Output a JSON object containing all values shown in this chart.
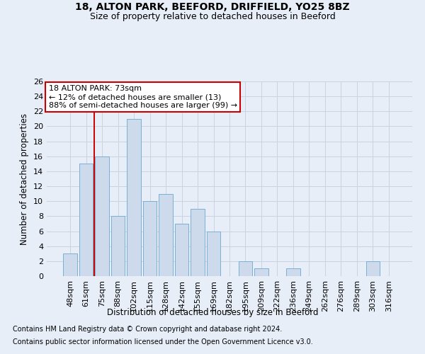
{
  "title1": "18, ALTON PARK, BEEFORD, DRIFFIELD, YO25 8BZ",
  "title2": "Size of property relative to detached houses in Beeford",
  "xlabel": "Distribution of detached houses by size in Beeford",
  "ylabel": "Number of detached properties",
  "footer1": "Contains HM Land Registry data © Crown copyright and database right 2024.",
  "footer2": "Contains public sector information licensed under the Open Government Licence v3.0.",
  "annotation_line1": "18 ALTON PARK: 73sqm",
  "annotation_line2": "← 12% of detached houses are smaller (13)",
  "annotation_line3": "88% of semi-detached houses are larger (99) →",
  "bar_labels": [
    "48sqm",
    "61sqm",
    "75sqm",
    "88sqm",
    "102sqm",
    "115sqm",
    "128sqm",
    "142sqm",
    "155sqm",
    "169sqm",
    "182sqm",
    "195sqm",
    "209sqm",
    "222sqm",
    "236sqm",
    "249sqm",
    "262sqm",
    "276sqm",
    "289sqm",
    "303sqm",
    "316sqm"
  ],
  "bar_values": [
    3,
    15,
    16,
    8,
    21,
    10,
    11,
    7,
    9,
    6,
    0,
    2,
    1,
    0,
    1,
    0,
    0,
    0,
    0,
    2,
    0
  ],
  "bar_color": "#ccdaeb",
  "bar_edge_color": "#7aafd4",
  "vline_x": 1.5,
  "ylim": [
    0,
    26
  ],
  "ytick_max": 26,
  "ytick_step": 2,
  "grid_color": "#c8d4e4",
  "background_color": "#e8eef8",
  "annotation_box_color": "white",
  "annotation_box_edge_color": "#cc0000",
  "vline_color": "#cc0000",
  "title1_fontsize": 10,
  "title2_fontsize": 9,
  "axis_label_fontsize": 8.5,
  "tick_fontsize": 8,
  "footer_fontsize": 7,
  "annotation_fontsize": 8
}
